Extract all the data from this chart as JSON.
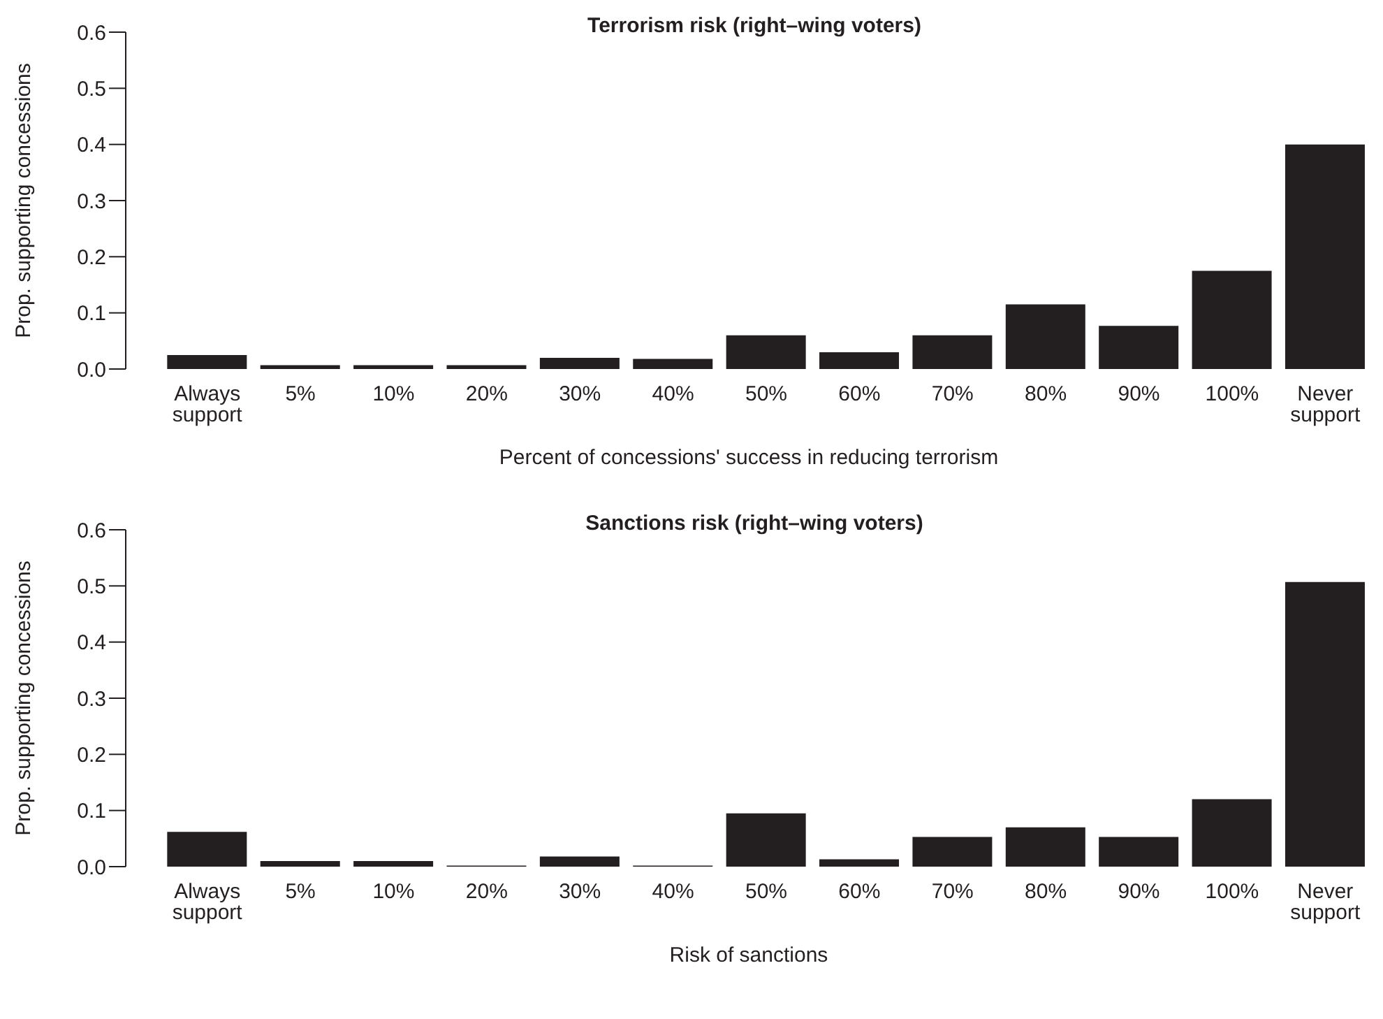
{
  "chart_data": [
    {
      "type": "bar",
      "title": "Terrorism risk (right–wing voters)",
      "xlabel": "Percent of concessions' success in reducing terrorism",
      "ylabel": "Prop. supporting concessions",
      "categories": [
        "Always support",
        "5%",
        "10%",
        "20%",
        "30%",
        "40%",
        "50%",
        "60%",
        "70%",
        "80%",
        "90%",
        "100%",
        "Never support"
      ],
      "values": [
        0.025,
        0.007,
        0.007,
        0.007,
        0.02,
        0.018,
        0.06,
        0.03,
        0.06,
        0.115,
        0.077,
        0.175,
        0.4
      ],
      "color": "#231f20",
      "ylim": [
        0,
        0.6
      ],
      "yticks": [
        {
          "value": 0,
          "label": "0.0"
        },
        0.1,
        0.2,
        0.3,
        0.4,
        0.5,
        0.6
      ]
    },
    {
      "type": "bar",
      "title": "Sanctions risk (right–wing voters)",
      "xlabel": "Risk of sanctions",
      "ylabel": "Prop. supporting concessions",
      "categories": [
        "Always support",
        "5%",
        "10%",
        "20%",
        "30%",
        "40%",
        "50%",
        "60%",
        "70%",
        "80%",
        "90%",
        "100%",
        "Never support"
      ],
      "values": [
        0.062,
        0.01,
        0.01,
        0.002,
        0.018,
        0.002,
        0.095,
        0.013,
        0.053,
        0.07,
        0.053,
        0.12,
        0.507
      ],
      "color": "#231f20",
      "ylim": [
        0,
        0.6
      ],
      "yticks": [
        {
          "value": 0,
          "label": "0.0"
        },
        0.1,
        0.2,
        0.3,
        0.4,
        0.5,
        0.6
      ]
    }
  ]
}
